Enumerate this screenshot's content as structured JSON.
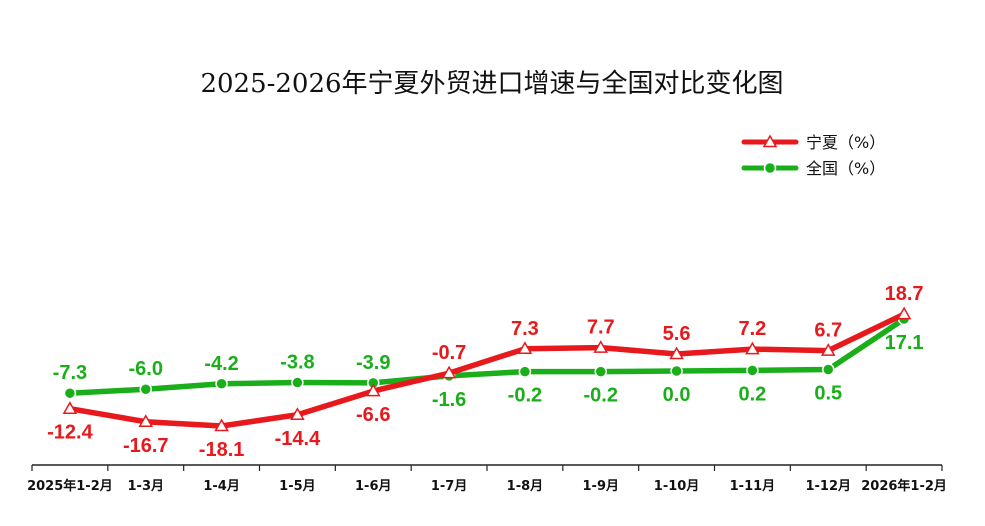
{
  "chart_data": {
    "type": "line",
    "title": "2025-2026年宁夏外贸进口增速与全国对比变化图",
    "categories": [
      "2025年1-2月",
      "1-3月",
      "1-4月",
      "1-5月",
      "1-6月",
      "1-7月",
      "1-8月",
      "1-9月",
      "1-10月",
      "1-11月",
      "1-12月",
      "2026年1-2月"
    ],
    "series": [
      {
        "name": "宁夏（%）",
        "color": "#e8191c",
        "marker": "triangle",
        "values": [
          -12.4,
          -16.7,
          -18.1,
          -14.4,
          -6.6,
          -0.7,
          7.3,
          7.7,
          5.6,
          7.2,
          6.7,
          18.7
        ],
        "labels": [
          "-12.4",
          "-16.7",
          "-18.1",
          "-14.4",
          "-6.6",
          "-0.7",
          "7.3",
          "7.7",
          "5.6",
          "7.2",
          "6.7",
          "18.7"
        ]
      },
      {
        "name": "全国（%）",
        "color": "#1aaf1a",
        "marker": "circle",
        "values": [
          -7.3,
          -6.0,
          -4.2,
          -3.8,
          -3.9,
          -1.6,
          -0.2,
          -0.2,
          0.0,
          0.2,
          0.5,
          17.1
        ],
        "labels": [
          "-7.3",
          "-6.0",
          "-4.2",
          "-3.8",
          "-3.9",
          "-1.6",
          "-0.2",
          "-0.2",
          "0.0",
          "0.2",
          "0.5",
          "17.1"
        ]
      }
    ],
    "legend_position": "top-right",
    "grid": false
  }
}
